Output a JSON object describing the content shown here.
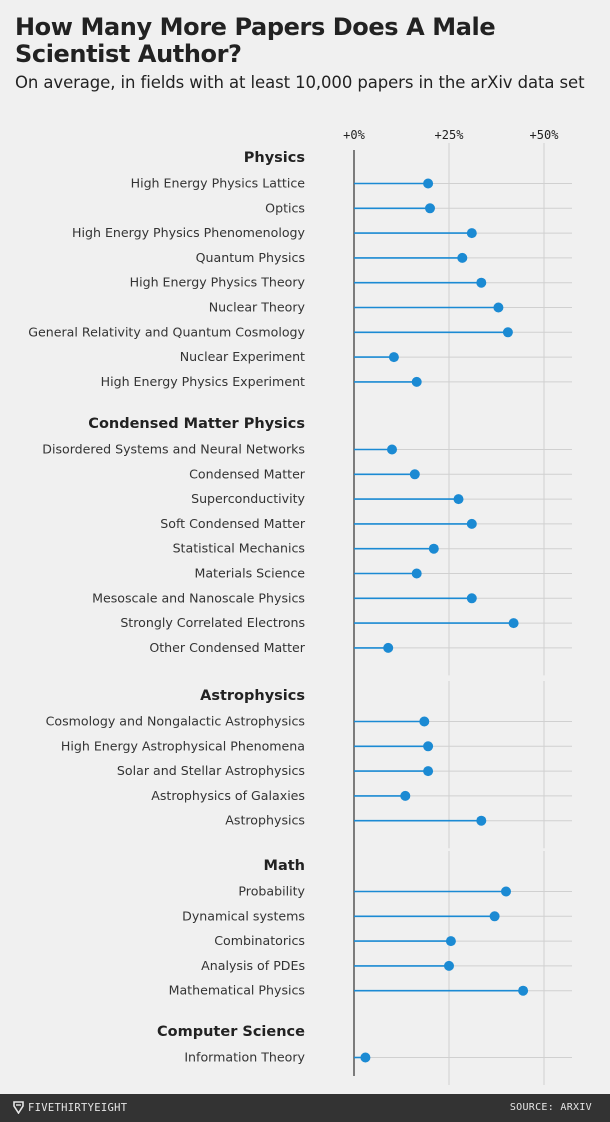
{
  "title": "How Many More Papers Does A Male Scientist Author?",
  "subtitle": "On average, in fields with at least 10,000 papers in the arXiv data set",
  "footer": {
    "brand": "FIVETHIRTYEIGHT",
    "source": "SOURCE: ARXIV"
  },
  "colors": {
    "dot": "#1b8ad3",
    "grid": "#d0d0d0",
    "axis": "#555555",
    "background": "#f0f0f0",
    "footer": "#333333"
  },
  "chart_data": {
    "type": "lollipop",
    "orientation": "horizontal",
    "x_ticks": [
      "+0%",
      "+25%",
      "+50%"
    ],
    "x_tick_values": [
      0,
      25,
      50
    ],
    "xlim": [
      0,
      57
    ],
    "grid": true,
    "groups": [
      {
        "name": "Physics",
        "items": [
          {
            "label": "High Energy Physics Lattice",
            "value": 19.5
          },
          {
            "label": "Optics",
            "value": 20
          },
          {
            "label": "High Energy Physics Phenomenology",
            "value": 31
          },
          {
            "label": "Quantum Physics",
            "value": 28.5
          },
          {
            "label": "High Energy Physics Theory",
            "value": 33.5
          },
          {
            "label": "Nuclear Theory",
            "value": 38
          },
          {
            "label": "General Relativity and Quantum Cosmology",
            "value": 40.5
          },
          {
            "label": "Nuclear Experiment",
            "value": 10.5
          },
          {
            "label": "High Energy Physics Experiment",
            "value": 16.5
          }
        ]
      },
      {
        "name": "Condensed Matter Physics",
        "items": [
          {
            "label": "Disordered Systems and Neural Networks",
            "value": 10
          },
          {
            "label": "Condensed Matter",
            "value": 16
          },
          {
            "label": "Superconductivity",
            "value": 27.5
          },
          {
            "label": "Soft Condensed Matter",
            "value": 31
          },
          {
            "label": "Statistical Mechanics",
            "value": 21
          },
          {
            "label": "Materials Science",
            "value": 16.5
          },
          {
            "label": "Mesoscale and Nanoscale Physics",
            "value": 31
          },
          {
            "label": "Strongly Correlated Electrons",
            "value": 42
          },
          {
            "label": "Other Condensed Matter",
            "value": 9
          }
        ]
      },
      {
        "name": "Astrophysics",
        "items": [
          {
            "label": "Cosmology and Nongalactic Astrophysics",
            "value": 18.5
          },
          {
            "label": "High Energy Astrophysical Phenomena",
            "value": 19.5
          },
          {
            "label": "Solar and Stellar Astrophysics",
            "value": 19.5
          },
          {
            "label": "Astrophysics of Galaxies",
            "value": 13.5
          },
          {
            "label": "Astrophysics",
            "value": 33.5
          }
        ]
      },
      {
        "name": "Math",
        "items": [
          {
            "label": "Probability",
            "value": 40
          },
          {
            "label": "Dynamical systems",
            "value": 37
          },
          {
            "label": "Combinatorics",
            "value": 25.5
          },
          {
            "label": "Analysis of PDEs",
            "value": 25
          },
          {
            "label": "Mathematical Physics",
            "value": 44.5
          }
        ]
      },
      {
        "name": "Computer Science",
        "items": [
          {
            "label": "Information Theory",
            "value": 3
          }
        ]
      }
    ]
  }
}
